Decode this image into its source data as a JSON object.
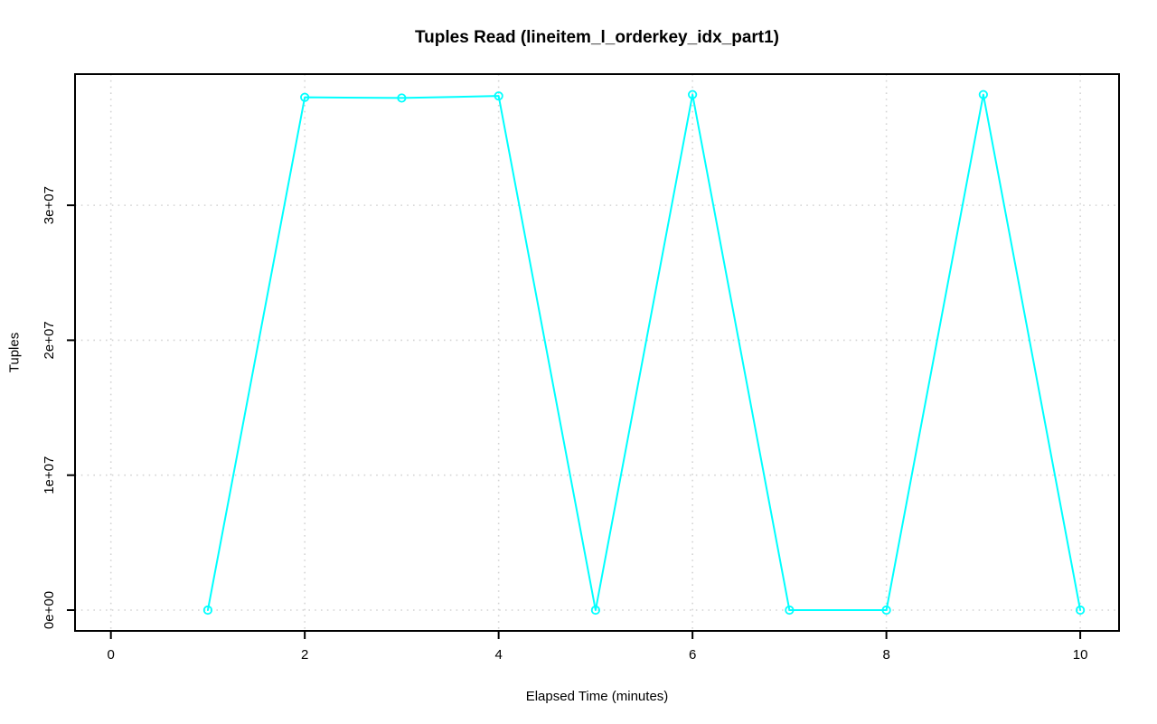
{
  "chart_data": {
    "type": "line",
    "title": "Tuples Read (lineitem_l_orderkey_idx_part1)",
    "xlabel": "Elapsed Time (minutes)",
    "ylabel": "Tuples",
    "x": [
      1,
      2,
      3,
      4,
      5,
      6,
      7,
      8,
      9,
      10
    ],
    "y": [
      0,
      38000000,
      37950000,
      38100000,
      0,
      38200000,
      0,
      0,
      38200000,
      0
    ],
    "x_ticks": {
      "values": [
        0,
        2,
        4,
        6,
        8,
        10
      ],
      "labels": [
        "0",
        "2",
        "4",
        "6",
        "8",
        "10"
      ]
    },
    "y_ticks": {
      "values": [
        0,
        10000000,
        20000000,
        30000000
      ],
      "labels": [
        "0e+00",
        "1e+07",
        "2e+07",
        "3e+07"
      ]
    },
    "xlim": [
      -0.37,
      10.4
    ],
    "ylim": [
      -1540000,
      39720000
    ],
    "grid": true,
    "legend": "none",
    "marker": "open-circle",
    "colors": {
      "line": "#00FFFF",
      "grid": "#D4D4D4",
      "axis": "#000000",
      "text": "#000000",
      "background": "#FFFFFF"
    }
  }
}
